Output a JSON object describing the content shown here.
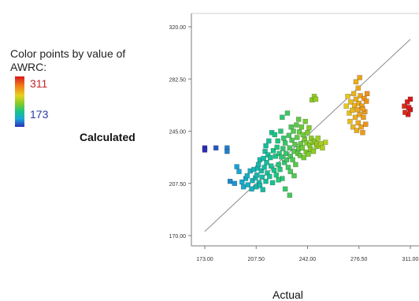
{
  "legend": {
    "title": "Color points by value of AWRC:",
    "max_label": "311",
    "min_label": "173",
    "colors": [
      "#d7191c",
      "#f07a1a",
      "#e6d21f",
      "#7ccb2a",
      "#15c48b",
      "#1aa6d6",
      "#2d2fb8"
    ]
  },
  "chart_data": {
    "type": "scatter",
    "xlabel": "Actual",
    "ylabel": "Calculated",
    "xlim": [
      173.0,
      311.0
    ],
    "ylim": [
      170.0,
      320.0
    ],
    "x_ticks": [
      "173.00",
      "207.50",
      "242.00",
      "276.50",
      "311.00"
    ],
    "y_ticks": [
      "170.00",
      "207.50",
      "245.00",
      "282.50",
      "320.00"
    ],
    "reference_line": {
      "from": [
        173.0,
        173.0
      ],
      "to": [
        311.0,
        311.0
      ],
      "label": "y = x"
    },
    "color_range": [
      173,
      311
    ],
    "points": [
      [
        173.0,
        233.0
      ],
      [
        173.0,
        231.5
      ],
      [
        180.5,
        233.0
      ],
      [
        188.0,
        233.0
      ],
      [
        188.0,
        230.5
      ],
      [
        190.0,
        209.0
      ],
      [
        193.0,
        207.5
      ],
      [
        194.5,
        219.5
      ],
      [
        196.0,
        216.0
      ],
      [
        198.0,
        208.5
      ],
      [
        199.0,
        205.0
      ],
      [
        200.5,
        211.0
      ],
      [
        201.5,
        213.0
      ],
      [
        202.0,
        206.5
      ],
      [
        203.5,
        216.5
      ],
      [
        204.5,
        203.5
      ],
      [
        205.0,
        209.5
      ],
      [
        206.0,
        217.5
      ],
      [
        207.0,
        211.5
      ],
      [
        207.5,
        205.0
      ],
      [
        208.0,
        213.5
      ],
      [
        208.5,
        218.5
      ],
      [
        209.0,
        221.0
      ],
      [
        209.5,
        208.0
      ],
      [
        210.0,
        224.5
      ],
      [
        210.0,
        206.0
      ],
      [
        211.0,
        216.5
      ],
      [
        211.5,
        212.0
      ],
      [
        212.0,
        203.0
      ],
      [
        212.5,
        225.5
      ],
      [
        213.0,
        219.0
      ],
      [
        213.5,
        230.5
      ],
      [
        214.0,
        209.0
      ],
      [
        214.0,
        234.5
      ],
      [
        214.5,
        222.5
      ],
      [
        215.0,
        215.0
      ],
      [
        215.5,
        228.0
      ],
      [
        216.0,
        238.0
      ],
      [
        216.5,
        212.5
      ],
      [
        217.0,
        226.0
      ],
      [
        217.5,
        220.0
      ],
      [
        218.0,
        244.0
      ],
      [
        218.5,
        208.0
      ],
      [
        219.0,
        231.0
      ],
      [
        219.5,
        217.0
      ],
      [
        220.0,
        242.5
      ],
      [
        220.5,
        227.0
      ],
      [
        221.0,
        213.5
      ],
      [
        221.5,
        233.5
      ],
      [
        222.0,
        238.0
      ],
      [
        222.5,
        221.0
      ],
      [
        223.0,
        229.0
      ],
      [
        223.5,
        217.5
      ],
      [
        224.0,
        245.0
      ],
      [
        224.5,
        226.5
      ],
      [
        225.0,
        255.0
      ],
      [
        225.0,
        211.0
      ],
      [
        225.5,
        232.5
      ],
      [
        226.0,
        240.0
      ],
      [
        226.5,
        222.5
      ],
      [
        227.0,
        236.5
      ],
      [
        227.5,
        229.0
      ],
      [
        228.0,
        224.5
      ],
      [
        228.5,
        258.0
      ],
      [
        229.0,
        219.0
      ],
      [
        229.5,
        242.0
      ],
      [
        230.0,
        233.0
      ],
      [
        230.5,
        227.0
      ],
      [
        231.0,
        248.0
      ],
      [
        231.5,
        238.5
      ],
      [
        232.0,
        224.5
      ],
      [
        232.5,
        245.0
      ],
      [
        233.0,
        230.5
      ],
      [
        233.5,
        235.5
      ],
      [
        234.0,
        221.0
      ],
      [
        234.5,
        249.5
      ],
      [
        235.0,
        240.5
      ],
      [
        235.5,
        229.0
      ],
      [
        236.0,
        253.5
      ],
      [
        236.0,
        232.5
      ],
      [
        236.5,
        244.5
      ],
      [
        237.0,
        227.5
      ],
      [
        237.5,
        236.0
      ],
      [
        238.0,
        248.0
      ],
      [
        238.5,
        233.0
      ],
      [
        239.0,
        242.5
      ],
      [
        239.5,
        226.0
      ],
      [
        240.0,
        239.0
      ],
      [
        240.5,
        252.0
      ],
      [
        241.0,
        230.0
      ],
      [
        241.5,
        236.5
      ],
      [
        242.0,
        244.0
      ],
      [
        242.5,
        228.5
      ],
      [
        243.0,
        247.5
      ],
      [
        243.5,
        235.0
      ],
      [
        244.0,
        232.0
      ],
      [
        244.5,
        240.0
      ],
      [
        245.0,
        267.5
      ],
      [
        245.5,
        237.0
      ],
      [
        246.0,
        230.5
      ],
      [
        246.5,
        270.0
      ],
      [
        247.0,
        238.0
      ],
      [
        247.5,
        268.0
      ],
      [
        248.0,
        234.0
      ],
      [
        248.5,
        236.0
      ],
      [
        249.0,
        240.0
      ],
      [
        250.0,
        234.5
      ],
      [
        251.0,
        236.0
      ],
      [
        252.0,
        233.0
      ],
      [
        254.0,
        237.0
      ],
      [
        230.5,
        216.0
      ],
      [
        233.0,
        213.0
      ],
      [
        230.0,
        199.0
      ],
      [
        222.5,
        210.0
      ],
      [
        227.0,
        203.5
      ],
      [
        268.0,
        263.0
      ],
      [
        269.0,
        270.0
      ],
      [
        270.0,
        258.0
      ],
      [
        270.5,
        252.0
      ],
      [
        271.0,
        266.0
      ],
      [
        272.0,
        260.0
      ],
      [
        272.5,
        248.0
      ],
      [
        273.0,
        272.0
      ],
      [
        273.5,
        263.5
      ],
      [
        274.0,
        255.0
      ],
      [
        274.5,
        268.0
      ],
      [
        275.0,
        245.5
      ],
      [
        275.5,
        260.5
      ],
      [
        276.0,
        276.0
      ],
      [
        276.0,
        251.0
      ],
      [
        276.5,
        265.0
      ],
      [
        277.0,
        257.0
      ],
      [
        277.5,
        270.5
      ],
      [
        278.0,
        248.0
      ],
      [
        278.5,
        263.0
      ],
      [
        279.0,
        244.0
      ],
      [
        279.5,
        255.0
      ],
      [
        280.0,
        268.5
      ],
      [
        280.5,
        259.0
      ],
      [
        281.0,
        250.0
      ],
      [
        281.5,
        266.5
      ],
      [
        277.0,
        283.5
      ],
      [
        274.5,
        280.5
      ],
      [
        282.0,
        272.0
      ],
      [
        279.0,
        261.0
      ],
      [
        307.0,
        263.0
      ],
      [
        309.0,
        266.0
      ],
      [
        311.0,
        260.5
      ],
      [
        309.5,
        257.0
      ],
      [
        311.0,
        268.0
      ],
      [
        307.5,
        258.5
      ],
      [
        310.0,
        262.0
      ]
    ]
  }
}
